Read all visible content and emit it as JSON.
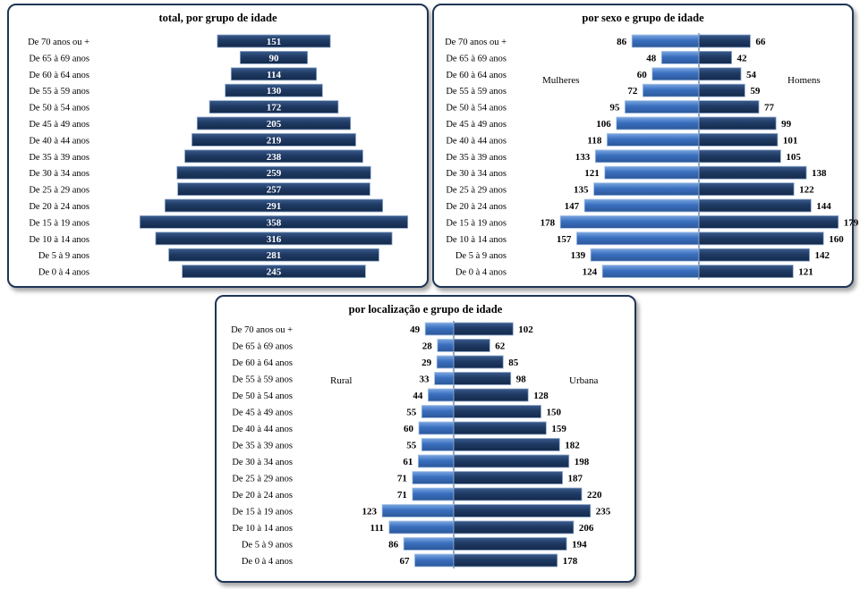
{
  "colors": {
    "dark_bar": "#1f3a63",
    "dark_bar_light": "#3a5b8c",
    "light_bar": "#3a6fbf",
    "light_bar_light": "#7aa6e0",
    "axis": "#6e8eb8",
    "panel_border": "#1f3556"
  },
  "chart_data": [
    {
      "type": "bar",
      "orientation": "horizontal-centered",
      "title": "total, por grupo de idade",
      "categories": [
        "De 70 anos ou +",
        "De 65 à 69 anos",
        "De 60 à 64 anos",
        "De 55 à 59 anos",
        "De 50 à 54 anos",
        "De 45 à 49 anos",
        "De 40 à 44 anos",
        "De 35 à 39 anos",
        "De 30 à 34 anos",
        "De 25 à 29 anos",
        "De 20 à 24 anos",
        "De 15 à 19 anos",
        "De 10 à 14 anos",
        "De 5 à 9 anos",
        "De 0 à 4 anos"
      ],
      "values": [
        151,
        90,
        114,
        130,
        172,
        205,
        219,
        238,
        259,
        257,
        291,
        358,
        316,
        281,
        245
      ]
    },
    {
      "type": "bar",
      "orientation": "population-pyramid",
      "title": "por sexo e grupo de idade",
      "categories": [
        "De 70 anos ou +",
        "De 65 à 69 anos",
        "De 60 à 64 anos",
        "De 55 à 59 anos",
        "De 50 à 54 anos",
        "De 45 à 49 anos",
        "De 40 à 44 anos",
        "De 35 à 39 anos",
        "De 30 à 34 anos",
        "De 25 à 29 anos",
        "De 20 à 24 anos",
        "De 15 à 19 anos",
        "De 10 à 14 anos",
        "De 5 à 9 anos",
        "De 0 à 4 anos"
      ],
      "series": [
        {
          "name": "Mulheres",
          "side": "left",
          "values": [
            86,
            48,
            60,
            72,
            95,
            106,
            118,
            133,
            121,
            135,
            147,
            178,
            157,
            139,
            124
          ]
        },
        {
          "name": "Homens",
          "side": "right",
          "values": [
            66,
            42,
            54,
            59,
            77,
            99,
            101,
            105,
            138,
            122,
            144,
            179,
            160,
            142,
            121
          ]
        }
      ]
    },
    {
      "type": "bar",
      "orientation": "population-pyramid",
      "title": "por localização e grupo de idade",
      "categories": [
        "De 70 anos ou +",
        "De 65 à 69 anos",
        "De 60 à 64 anos",
        "De 55 à 59 anos",
        "De 50 à 54 anos",
        "De 45 à 49 anos",
        "De 40 à 44 anos",
        "De 35 à 39 anos",
        "De 30 à 34 anos",
        "De 25 à 29 anos",
        "De 20 à 24 anos",
        "De 15 à 19 anos",
        "De 10 à 14 anos",
        "De 5 à 9 anos",
        "De 0 à 4 anos"
      ],
      "series": [
        {
          "name": "Rural",
          "side": "left",
          "values": [
            49,
            28,
            29,
            33,
            44,
            55,
            60,
            55,
            61,
            71,
            71,
            123,
            111,
            86,
            67
          ]
        },
        {
          "name": "Urbana",
          "side": "right",
          "values": [
            102,
            62,
            85,
            98,
            128,
            150,
            159,
            182,
            198,
            187,
            220,
            235,
            206,
            194,
            178
          ]
        }
      ]
    }
  ]
}
